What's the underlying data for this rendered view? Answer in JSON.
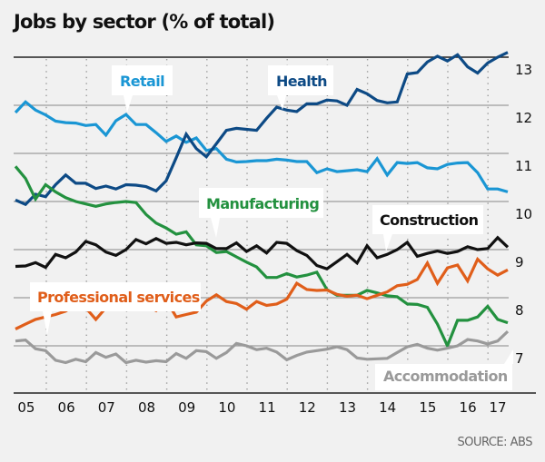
{
  "title": "Jobs by sector (% of total)",
  "source": "SOURCE: ABS",
  "chart_data": {
    "type": "line",
    "title": "Jobs by sector (% of total)",
    "xlabel": "",
    "ylabel": "",
    "ylim": [
      6.0,
      13.0
    ],
    "yticks": [
      7,
      8,
      9,
      10,
      11,
      12,
      13
    ],
    "xticks": [
      "05",
      "06",
      "07",
      "08",
      "09",
      "10",
      "11",
      "12",
      "13",
      "14",
      "15",
      "16",
      "17"
    ],
    "x_start": "2004 Q4",
    "frequency": "quarterly",
    "grid": true,
    "series": [
      {
        "name": "Retail",
        "color": "#1a96d4",
        "values": [
          11.85,
          12.07,
          11.9,
          11.8,
          11.67,
          11.64,
          11.63,
          11.58,
          11.6,
          11.38,
          11.68,
          11.81,
          11.6,
          11.6,
          11.43,
          11.25,
          11.36,
          11.23,
          11.32,
          11.06,
          11.1,
          10.88,
          10.82,
          10.83,
          10.85,
          10.85,
          10.88,
          10.86,
          10.83,
          10.83,
          10.6,
          10.68,
          10.62,
          10.64,
          10.66,
          10.62,
          10.89,
          10.55,
          10.81,
          10.79,
          10.81,
          10.7,
          10.68,
          10.77,
          10.8,
          10.81,
          10.6,
          10.26,
          10.26,
          10.2
        ]
      },
      {
        "name": "Health",
        "color": "#0d4a85",
        "values": [
          10.03,
          9.94,
          10.15,
          10.1,
          10.35,
          10.55,
          10.38,
          10.38,
          10.27,
          10.32,
          10.26,
          10.35,
          10.34,
          10.31,
          10.22,
          10.43,
          10.91,
          11.4,
          11.1,
          10.93,
          11.2,
          11.48,
          11.52,
          11.5,
          11.48,
          11.73,
          11.96,
          11.9,
          11.87,
          12.03,
          12.03,
          12.11,
          12.09,
          12.0,
          12.33,
          12.24,
          12.1,
          12.05,
          12.07,
          12.65,
          12.68,
          12.9,
          13.02,
          12.92,
          13.05,
          12.8,
          12.67,
          12.88,
          13.0,
          13.1
        ]
      },
      {
        "name": "Manufacturing",
        "color": "#23913f",
        "values": [
          10.73,
          10.48,
          10.05,
          10.35,
          10.2,
          10.08,
          10.0,
          9.95,
          9.9,
          9.95,
          9.98,
          10.0,
          9.98,
          9.73,
          9.55,
          9.45,
          9.32,
          9.37,
          9.1,
          9.08,
          8.94,
          8.96,
          8.85,
          8.74,
          8.64,
          8.42,
          8.42,
          8.5,
          8.43,
          8.47,
          8.53,
          8.17,
          8.05,
          8.05,
          8.05,
          8.15,
          8.1,
          8.04,
          8.02,
          7.87,
          7.86,
          7.8,
          7.45,
          7.0,
          7.53,
          7.53,
          7.6,
          7.82,
          7.55,
          7.48
        ]
      },
      {
        "name": "Construction",
        "color": "#111111",
        "values": [
          8.65,
          8.66,
          8.73,
          8.63,
          8.9,
          8.83,
          8.95,
          9.17,
          9.1,
          8.95,
          8.88,
          9.0,
          9.21,
          9.12,
          9.23,
          9.13,
          9.15,
          9.1,
          9.14,
          9.13,
          9.02,
          9.02,
          9.14,
          8.96,
          9.08,
          8.93,
          9.15,
          9.13,
          8.98,
          8.88,
          8.67,
          8.6,
          8.75,
          8.9,
          8.72,
          9.08,
          8.83,
          8.9,
          9.0,
          9.15,
          8.86,
          8.92,
          8.97,
          8.92,
          8.96,
          9.06,
          9.0,
          9.02,
          9.25,
          9.05
        ]
      },
      {
        "name": "Professional services",
        "color": "#e05e1a",
        "values": [
          7.35,
          7.45,
          7.55,
          7.6,
          7.65,
          7.72,
          7.86,
          7.79,
          7.55,
          7.79,
          7.85,
          7.77,
          8.0,
          7.84,
          7.73,
          7.95,
          7.6,
          7.65,
          7.7,
          7.93,
          8.06,
          7.92,
          7.88,
          7.76,
          7.92,
          7.84,
          7.87,
          7.97,
          8.3,
          8.17,
          8.15,
          8.16,
          8.07,
          8.03,
          8.05,
          7.98,
          8.05,
          8.12,
          8.25,
          8.28,
          8.38,
          8.72,
          8.3,
          8.62,
          8.68,
          8.35,
          8.8,
          8.6,
          8.47,
          8.58
        ]
      },
      {
        "name": "Accommodation",
        "color": "#9a9a9a",
        "values": [
          7.1,
          7.12,
          6.94,
          6.9,
          6.7,
          6.65,
          6.72,
          6.67,
          6.86,
          6.76,
          6.83,
          6.65,
          6.7,
          6.66,
          6.69,
          6.67,
          6.84,
          6.74,
          6.9,
          6.88,
          6.74,
          6.86,
          7.05,
          7.0,
          6.92,
          6.95,
          6.87,
          6.71,
          6.8,
          6.87,
          6.9,
          6.93,
          6.98,
          6.92,
          6.75,
          6.72,
          6.73,
          6.74,
          6.86,
          6.98,
          7.03,
          6.95,
          6.91,
          6.95,
          7.0,
          7.13,
          7.1,
          7.04,
          7.1,
          7.3
        ]
      }
    ],
    "annotations": [
      {
        "series": "Retail",
        "label": "Retail"
      },
      {
        "series": "Health",
        "label": "Health"
      },
      {
        "series": "Manufacturing",
        "label": "Manufacturing"
      },
      {
        "series": "Construction",
        "label": "Construction"
      },
      {
        "series": "Professional services",
        "label": "Professional services"
      },
      {
        "series": "Accommodation",
        "label": "Accommodation"
      }
    ]
  }
}
